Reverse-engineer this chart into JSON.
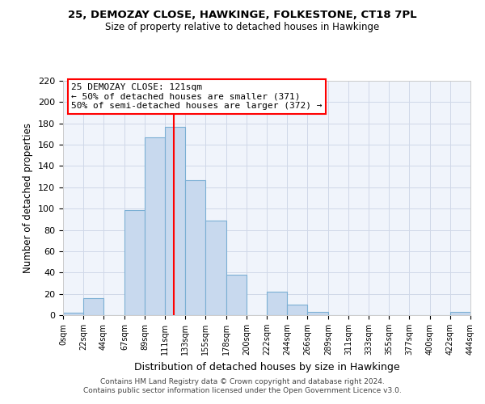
{
  "title": "25, DEMOZAY CLOSE, HAWKINGE, FOLKESTONE, CT18 7PL",
  "subtitle": "Size of property relative to detached houses in Hawkinge",
  "xlabel": "Distribution of detached houses by size in Hawkinge",
  "ylabel": "Number of detached properties",
  "bar_color": "#c8d9ee",
  "bar_edge_color": "#7bafd4",
  "vline_x": 121,
  "vline_color": "red",
  "annotation_title": "25 DEMOZAY CLOSE: 121sqm",
  "annotation_line1": "← 50% of detached houses are smaller (371)",
  "annotation_line2": "50% of semi-detached houses are larger (372) →",
  "bin_edges": [
    0,
    22,
    44,
    67,
    89,
    111,
    133,
    155,
    178,
    200,
    222,
    244,
    266,
    289,
    311,
    333,
    355,
    377,
    400,
    422,
    444
  ],
  "bin_counts": [
    2,
    16,
    0,
    99,
    167,
    177,
    127,
    89,
    38,
    0,
    22,
    10,
    3,
    0,
    0,
    0,
    0,
    0,
    0,
    3
  ],
  "ylim": [
    0,
    220
  ],
  "yticks": [
    0,
    20,
    40,
    60,
    80,
    100,
    120,
    140,
    160,
    180,
    200,
    220
  ],
  "footer_line1": "Contains HM Land Registry data © Crown copyright and database right 2024.",
  "footer_line2": "Contains public sector information licensed under the Open Government Licence v3.0."
}
